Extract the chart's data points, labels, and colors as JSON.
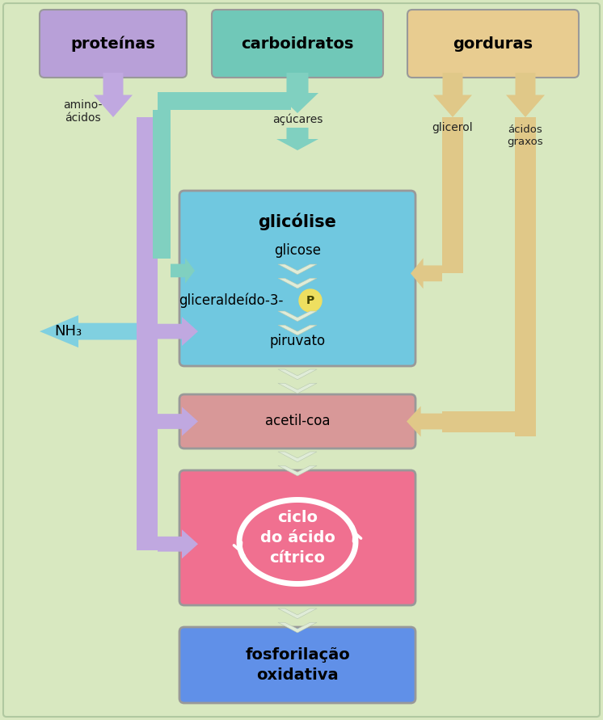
{
  "bg_color": "#d8e8c0",
  "box_proteinas": {
    "color": "#b8a0d8",
    "label": "proteínas"
  },
  "box_carboidratos": {
    "color": "#70c8b8",
    "label": "carboidratos"
  },
  "box_gorduras": {
    "color": "#e8cc90",
    "label": "gorduras"
  },
  "box_glicolise": {
    "color": "#70c8e0",
    "label": "glicólise"
  },
  "box_acetilcoa": {
    "color": "#d89898",
    "label": "acetil-coa"
  },
  "box_ciclo": {
    "color": "#f07090",
    "label": "ciclo\ndo ácido\ncítrico"
  },
  "box_fosforilacao": {
    "color": "#6090e8",
    "label": "fosforilação\noxidativa"
  },
  "color_purple": "#c0a8e0",
  "color_teal": "#80d0c0",
  "color_tan": "#e0c888",
  "color_cyan_arrow": "#80d0e0",
  "color_white_arrow": "#e8f0e8",
  "label_aminoacidos": "amino-\nácidos",
  "label_acucares": "açúcares",
  "label_glicerol": "glicerol",
  "label_acidosgraxos": "ácidos\ngraxos",
  "label_glicose": "glicose",
  "label_gliceraldeido": "gliceraldeído-3-",
  "label_piruvato": "piruvato",
  "label_nh3": "NH₃"
}
